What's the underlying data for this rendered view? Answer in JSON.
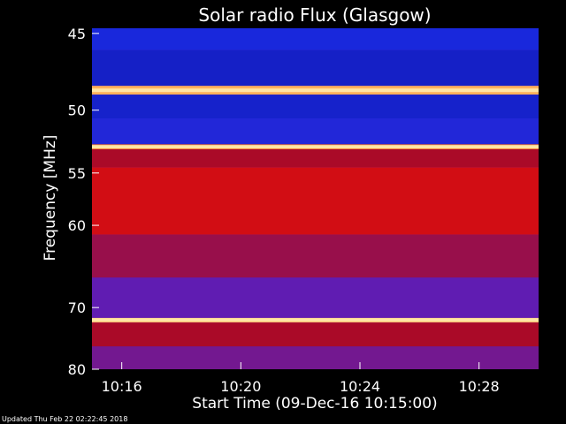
{
  "chart_data": {
    "type": "heatmap",
    "title": "Solar radio Flux (Glasgow)",
    "xlabel": "Start Time (09-Dec-16 10:15:00)",
    "ylabel": "Frequency [MHz]",
    "x_tick_labels": [
      "10:16",
      "10:20",
      "10:24",
      "10:28"
    ],
    "x_ticks_minutes_after_start": [
      1,
      5,
      9,
      13
    ],
    "x_range_minutes_after_start": [
      0,
      15
    ],
    "y_tick_labels": [
      "45",
      "50",
      "55",
      "60",
      "70",
      "80"
    ],
    "y_ticks_mhz": [
      45,
      50,
      55,
      60,
      70,
      80
    ],
    "y_range_mhz": [
      44.7,
      80
    ],
    "y_scale": "reciprocal (frequency decreasing toward top)",
    "colormap": "blue-red-yellow",
    "bands": [
      {
        "f_from": 44.7,
        "f_to": 46.0,
        "level": 0.18
      },
      {
        "f_from": 46.0,
        "f_to": 48.3,
        "level": 0.14
      },
      {
        "f_from": 48.3,
        "f_to": 48.9,
        "level": 0.85
      },
      {
        "f_from": 48.9,
        "f_to": 50.6,
        "level": 0.15
      },
      {
        "f_from": 50.6,
        "f_to": 52.6,
        "level": 0.2
      },
      {
        "f_from": 52.6,
        "f_to": 53.0,
        "level": 0.75
      },
      {
        "f_from": 53.0,
        "f_to": 54.5,
        "level": 0.45
      },
      {
        "f_from": 54.5,
        "f_to": 61.0,
        "level": 0.55
      },
      {
        "f_from": 61.0,
        "f_to": 66.0,
        "level": 0.42
      },
      {
        "f_from": 66.0,
        "f_to": 71.5,
        "level": 0.33
      },
      {
        "f_from": 71.5,
        "f_to": 72.2,
        "level": 0.85
      },
      {
        "f_from": 72.2,
        "f_to": 76.0,
        "level": 0.45
      },
      {
        "f_from": 76.0,
        "f_to": 80.0,
        "level": 0.36
      }
    ],
    "bright_lines_mhz": [
      48.6,
      52.8,
      71.8
    ],
    "colors": {
      "background": "#000000",
      "text": "#ffffff"
    }
  },
  "footer": {
    "updated_text": "Updated Thu Feb 22 02:22:45 2018"
  }
}
